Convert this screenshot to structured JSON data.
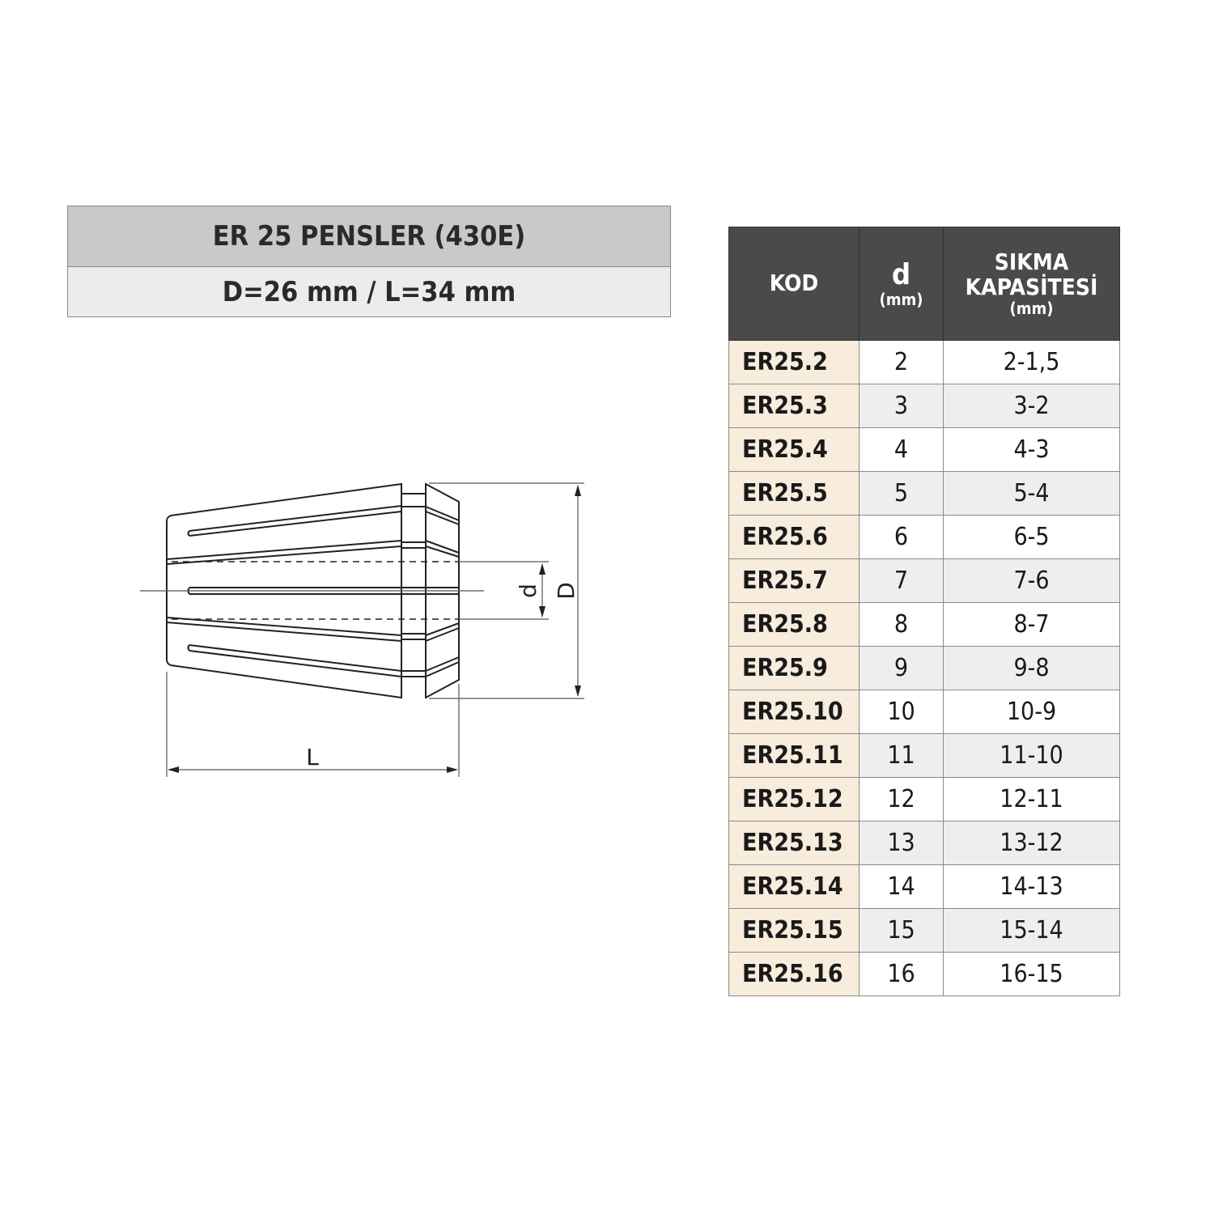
{
  "title": "ER 25 PENSLER (430E)",
  "subtitle": "D=26 mm / L=34 mm",
  "drawing": {
    "label_d": "d",
    "label_D": "D",
    "label_L": "L"
  },
  "table": {
    "headers": {
      "kod": "KOD",
      "d": "d",
      "d_unit": "(mm)",
      "cap_line1": "SIKMA",
      "cap_line2": "KAPASİTESİ",
      "cap_unit": "(mm)"
    },
    "rows": [
      {
        "kod": "ER25.2",
        "d": "2",
        "cap": "2-1,5"
      },
      {
        "kod": "ER25.3",
        "d": "3",
        "cap": "3-2"
      },
      {
        "kod": "ER25.4",
        "d": "4",
        "cap": "4-3"
      },
      {
        "kod": "ER25.5",
        "d": "5",
        "cap": "5-4"
      },
      {
        "kod": "ER25.6",
        "d": "6",
        "cap": "6-5"
      },
      {
        "kod": "ER25.7",
        "d": "7",
        "cap": "7-6"
      },
      {
        "kod": "ER25.8",
        "d": "8",
        "cap": "8-7"
      },
      {
        "kod": "ER25.9",
        "d": "9",
        "cap": "9-8"
      },
      {
        "kod": "ER25.10",
        "d": "10",
        "cap": "10-9"
      },
      {
        "kod": "ER25.11",
        "d": "11",
        "cap": "11-10"
      },
      {
        "kod": "ER25.12",
        "d": "12",
        "cap": "12-11"
      },
      {
        "kod": "ER25.13",
        "d": "13",
        "cap": "13-12"
      },
      {
        "kod": "ER25.14",
        "d": "14",
        "cap": "14-13"
      },
      {
        "kod": "ER25.15",
        "d": "15",
        "cap": "15-14"
      },
      {
        "kod": "ER25.16",
        "d": "16",
        "cap": "16-15"
      }
    ]
  },
  "colors": {
    "header_bg": "#4a4a4a",
    "kod_bg": "#f8ecdc",
    "alt_row_bg": "#eeeeee",
    "title_bg": "#c9c9c9"
  }
}
